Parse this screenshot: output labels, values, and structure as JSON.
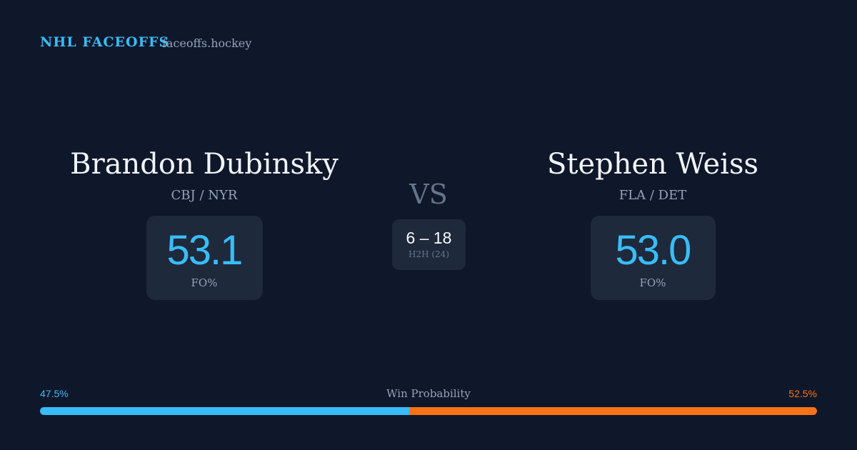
{
  "header": {
    "brand": "NHL FACEOFFS",
    "site": "faceoffs.hockey"
  },
  "players": [
    {
      "name": "Brandon Dubinsky",
      "teams": "CBJ / NYR",
      "fo_pct": "53.1",
      "fo_label": "FO%"
    },
    {
      "name": "Stephen Weiss",
      "teams": "FLA / DET",
      "fo_pct": "53.0",
      "fo_label": "FO%"
    }
  ],
  "vs": "VS",
  "h2h": {
    "score": "6 – 18",
    "label": "H2H (24)"
  },
  "win_probability": {
    "title": "Win Probability",
    "values": [
      47.5,
      52.5
    ],
    "value_labels": [
      "47.5%",
      "52.5%"
    ],
    "colors": [
      "#38bdf8",
      "#f97316"
    ]
  }
}
